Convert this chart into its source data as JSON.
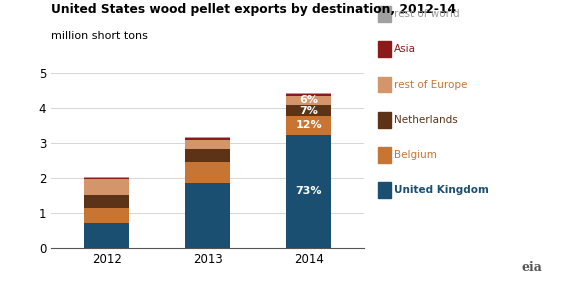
{
  "title": "United States wood pellet exports by destination, 2012-14",
  "subtitle": "million short tons",
  "years": [
    "2012",
    "2013",
    "2014"
  ],
  "categories": [
    "United Kingdom",
    "Belgium",
    "Netherlands",
    "rest of Europe",
    "Asia",
    "rest of world"
  ],
  "values": {
    "United Kingdom": [
      0.72,
      1.87,
      3.25
    ],
    "Belgium": [
      0.42,
      0.58,
      0.53
    ],
    "Netherlands": [
      0.38,
      0.38,
      0.31
    ],
    "rest of Europe": [
      0.45,
      0.27,
      0.27
    ],
    "Asia": [
      0.04,
      0.04,
      0.04
    ],
    "rest of world": [
      0.03,
      0.03,
      0.03
    ]
  },
  "colors": {
    "United Kingdom": "#1b4f72",
    "Belgium": "#c87533",
    "Netherlands": "#5c3317",
    "rest of Europe": "#d4956a",
    "Asia": "#8b1a1a",
    "rest of world": "#a0a0a0"
  },
  "legend_text_colors": {
    "rest of world": "#999999",
    "Asia": "#8b1a1a",
    "rest of Europe": "#c87533",
    "Netherlands": "#5c3317",
    "Belgium": "#c87533",
    "United Kingdom": "#1b4f72"
  },
  "annotations_2014": {
    "United Kingdom": "73%",
    "Belgium": "12%",
    "Netherlands": "7%",
    "rest of Europe": "6%"
  },
  "ylim": [
    0,
    5
  ],
  "yticks": [
    0,
    1,
    2,
    3,
    4,
    5
  ],
  "bar_width": 0.45
}
